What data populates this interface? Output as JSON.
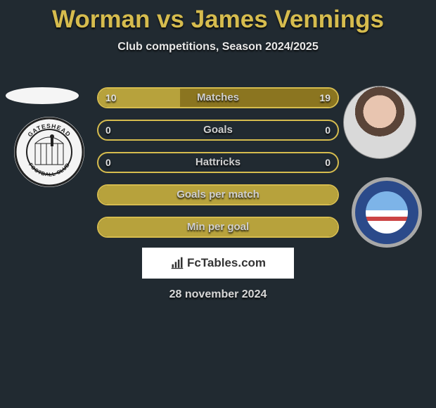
{
  "type": "infographic",
  "background_color": "#212a31",
  "accent_color": "#d6bc4e",
  "text_color": "#e0e0e0",
  "title": "Worman vs James Vennings",
  "title_fontsize": 35,
  "title_color": "#d6bc4e",
  "subtitle": "Club competitions, Season 2024/2025",
  "subtitle_fontsize": 16,
  "player_left": {
    "name": "Worman",
    "club": "Gateshead Football Club"
  },
  "player_right": {
    "name": "James Vennings",
    "club": "Braintree Town F.C."
  },
  "bars": {
    "track_width": 344,
    "track_height": 30,
    "border_radius": 15,
    "border_width": 2,
    "row_gap": 16,
    "label_fontsize": 15,
    "value_fontsize": 14,
    "rows": [
      {
        "label": "Matches",
        "left": "10",
        "right": "19",
        "left_pct": 34,
        "right_pct": 66,
        "show_values": true,
        "fill_left": "#b7a23c",
        "fill_right": "#8b7520",
        "border": "#d6bc4e"
      },
      {
        "label": "Goals",
        "left": "0",
        "right": "0",
        "left_pct": 0,
        "right_pct": 0,
        "show_values": true,
        "fill_left": "#b7a23c",
        "fill_right": "#8b7520",
        "border": "#d6bc4e"
      },
      {
        "label": "Hattricks",
        "left": "0",
        "right": "0",
        "left_pct": 0,
        "right_pct": 0,
        "show_values": true,
        "fill_left": "#b7a23c",
        "fill_right": "#8b7520",
        "border": "#d6bc4e"
      },
      {
        "label": "Goals per match",
        "left": "",
        "right": "",
        "left_pct": 100,
        "right_pct": 0,
        "show_values": false,
        "fill_left": "#b7a23c",
        "fill_right": "#8b7520",
        "border": "#d6bc4e"
      },
      {
        "label": "Min per goal",
        "left": "",
        "right": "",
        "left_pct": 100,
        "right_pct": 0,
        "show_values": false,
        "fill_left": "#b7a23c",
        "fill_right": "#8b7520",
        "border": "#d6bc4e"
      }
    ]
  },
  "attribution": {
    "text": "FcTables.com",
    "background": "#ffffff",
    "fontsize": 17
  },
  "date": "28 november 2024",
  "date_fontsize": 16
}
